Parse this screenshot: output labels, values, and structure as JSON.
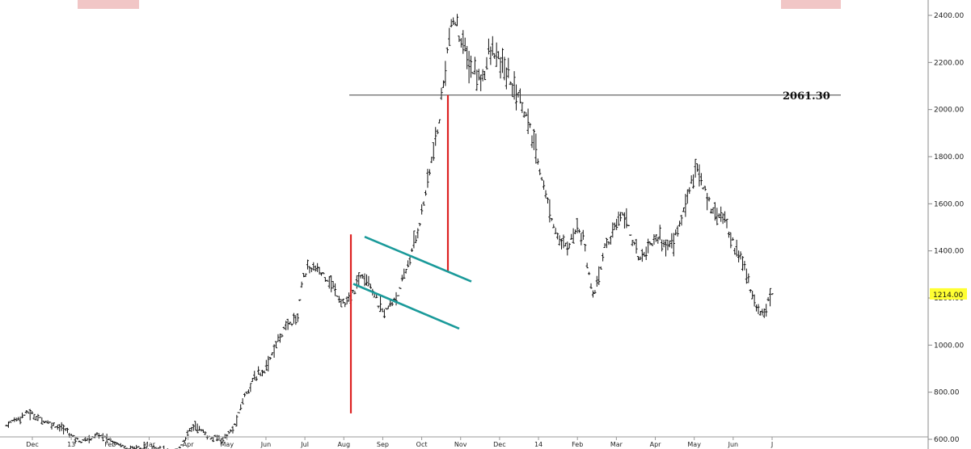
{
  "chart_data": {
    "type": "ohlc",
    "title": "",
    "xlabel": "",
    "ylabel": "",
    "ylim": [
      530,
      2450
    ],
    "y_ticks": [
      600,
      800,
      1000,
      1200,
      1400,
      1600,
      1800,
      2000,
      2200,
      2400
    ],
    "y_tick_labels": [
      "600.00",
      "800.00",
      "1000.00",
      "1200.00",
      "1400.00",
      "1600.00",
      "1800.00",
      "2000.00",
      "2200.00",
      "2400.00"
    ],
    "x_tick_labels": [
      "Dec",
      "13",
      "Feb",
      "Mar",
      "Apr",
      "May",
      "Jun",
      "Jul",
      "Aug",
      "Sep",
      "Oct",
      "Nov",
      "Dec",
      "14",
      "Feb",
      "Mar",
      "Apr",
      "May",
      "Jun",
      "J"
    ],
    "grid": false,
    "series": [
      {
        "values": [
          660,
          675,
          690,
          700,
          715,
          700,
          690,
          680,
          670,
          660,
          650,
          640,
          620,
          600,
          590,
          600,
          610,
          620,
          610,
          600,
          590,
          580,
          570,
          560,
          570,
          560,
          550,
          560,
          570,
          560,
          550,
          545,
          560,
          600,
          640,
          660,
          640,
          620,
          600,
          610,
          600,
          620,
          640,
          700,
          780,
          820,
          860,
          880,
          900,
          950,
          1000,
          1050,
          1080,
          1100,
          1120,
          1300,
          1320,
          1330,
          1310,
          1300,
          1270,
          1230,
          1190,
          1170,
          1200,
          1260,
          1310,
          1290,
          1230,
          1170,
          1140,
          1160,
          1200,
          1230,
          1310,
          1380,
          1460,
          1560,
          1680,
          1800,
          1900,
          2100,
          2300,
          2380,
          2320,
          2250,
          2180,
          2150,
          2120,
          2200,
          2250,
          2220,
          2180,
          2140,
          2100,
          2060,
          2000,
          1920,
          1840,
          1740,
          1640,
          1550,
          1480,
          1420,
          1420,
          1460,
          1510,
          1460,
          1300,
          1200,
          1300,
          1420,
          1450,
          1500,
          1570,
          1540,
          1450,
          1380,
          1380,
          1420,
          1450,
          1460,
          1430,
          1420,
          1460,
          1520,
          1600,
          1700,
          1760,
          1680,
          1620,
          1580,
          1560,
          1540,
          1480,
          1420,
          1380,
          1320,
          1240,
          1170,
          1130,
          1180,
          1214
        ]
      }
    ],
    "horizontal_line": {
      "value": 2061.3,
      "label": "2061.30"
    },
    "current_price": {
      "value": 1214.0,
      "label": "1214.00",
      "highlight_color": "#ffff33"
    },
    "flag_pole_1": {
      "from": 710,
      "to": 1470,
      "color": "#dd2222"
    },
    "flag_pole_2": {
      "from": 1310,
      "to": 2061.3,
      "color": "#dd2222"
    },
    "channel_color": "#1a9a9a",
    "channel_upper": {
      "from": 1460,
      "to": 1270
    },
    "channel_lower": {
      "from": 1260,
      "to": 1070
    },
    "bar_color": "#111111",
    "top_patch_color": "#f1c6c6"
  }
}
